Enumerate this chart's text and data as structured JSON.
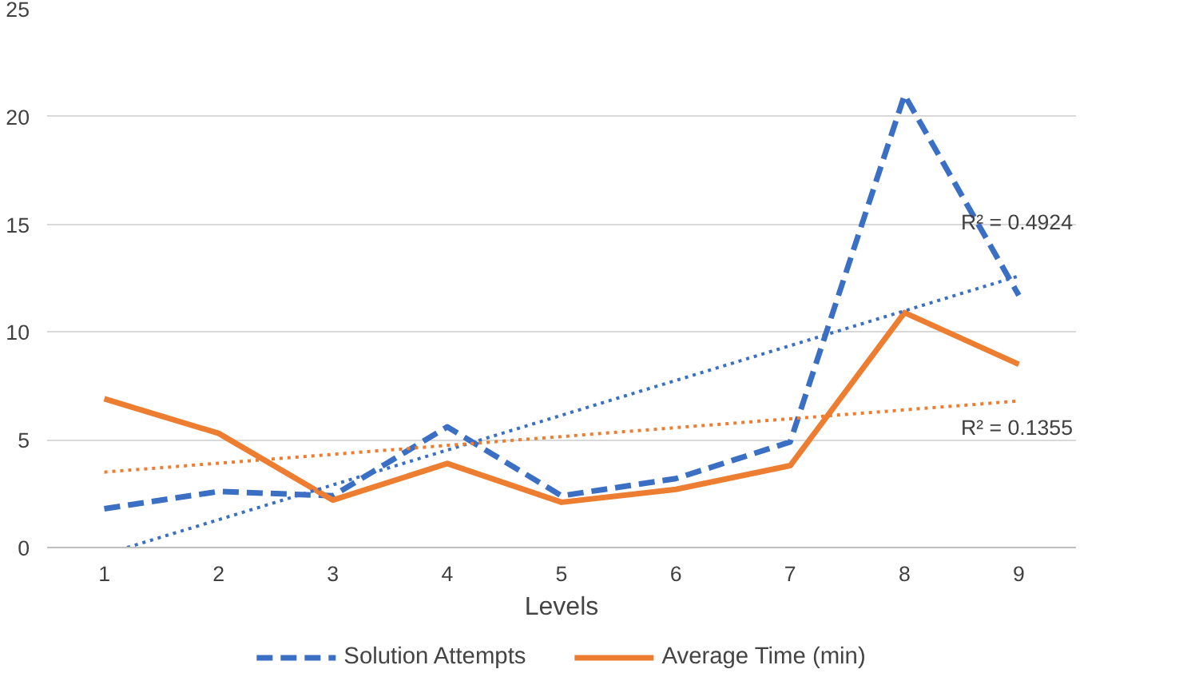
{
  "chart_data": {
    "type": "line",
    "xlabel": "Levels",
    "x": [
      1,
      2,
      3,
      4,
      5,
      6,
      7,
      8,
      9
    ],
    "xlim": [
      0.5,
      9.5
    ],
    "xticks": [
      1,
      2,
      3,
      4,
      5,
      6,
      7,
      8,
      9
    ],
    "ylim": [
      0,
      25
    ],
    "yticks": [
      0,
      5,
      10,
      15,
      20,
      25
    ],
    "grid": "y",
    "legend": "bottom",
    "marker": "none",
    "series": [
      {
        "name": "Solution Attempts",
        "color": "#3a6fc4",
        "line_style": "dashed",
        "values": [
          1.8,
          2.6,
          2.4,
          5.6,
          2.4,
          3.2,
          4.9,
          21.0,
          11.7
        ]
      },
      {
        "name": "Average Time (min)",
        "color": "#ed7d31",
        "line_style": "solid",
        "values": [
          6.9,
          5.3,
          2.2,
          3.9,
          2.1,
          2.7,
          3.8,
          10.9,
          8.5
        ]
      },
      {
        "color": "#3a6fc4",
        "line_style": "dotted",
        "x": [
          1.2,
          9
        ],
        "values": [
          0,
          12.6
        ]
      },
      {
        "color": "#ed7d31",
        "line_style": "dotted",
        "x": [
          1,
          9
        ],
        "values": [
          3.5,
          6.8
        ]
      }
    ],
    "annotations": [
      "R² = 0.4924",
      "R² = 0.1355"
    ]
  }
}
